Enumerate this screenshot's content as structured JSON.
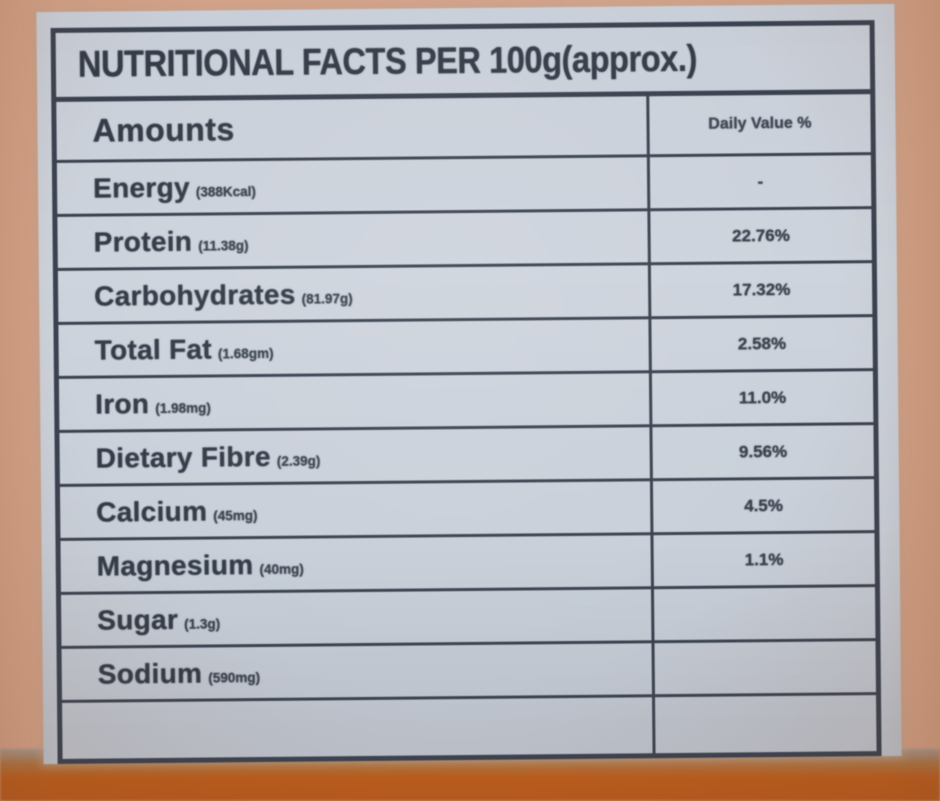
{
  "label": {
    "title": "NUTRITIONAL FACTS PER 100g(approx.)",
    "header": {
      "amounts": "Amounts",
      "daily_value": "Daily Value %"
    },
    "rows": [
      {
        "name": "Energy",
        "detail": "(388Kcal)",
        "value": "-"
      },
      {
        "name": "Protein",
        "detail": "(11.38g)",
        "value": "22.76%"
      },
      {
        "name": "Carbohydrates",
        "detail": "(81.97g)",
        "value": "17.32%"
      },
      {
        "name": "Total Fat",
        "detail": "(1.68gm)",
        "value": "2.58%"
      },
      {
        "name": "Iron",
        "detail": "(1.98mg)",
        "value": "11.0%"
      },
      {
        "name": "Dietary Fibre",
        "detail": "(2.39g)",
        "value": "9.56%"
      },
      {
        "name": "Calcium",
        "detail": "(45mg)",
        "value": "4.5%"
      },
      {
        "name": "Magnesium",
        "detail": "(40mg)",
        "value": "1.1%"
      },
      {
        "name": "Sugar",
        "detail": "(1.3g)",
        "value": ""
      },
      {
        "name": "Sodium",
        "detail": "(590mg)",
        "value": ""
      },
      {
        "name": "",
        "detail": "",
        "value": ""
      }
    ],
    "colors": {
      "package_background": "#d2a288",
      "package_band": "#b85a1e",
      "paper": "#ccd3dc",
      "ink": "#343c48"
    }
  }
}
